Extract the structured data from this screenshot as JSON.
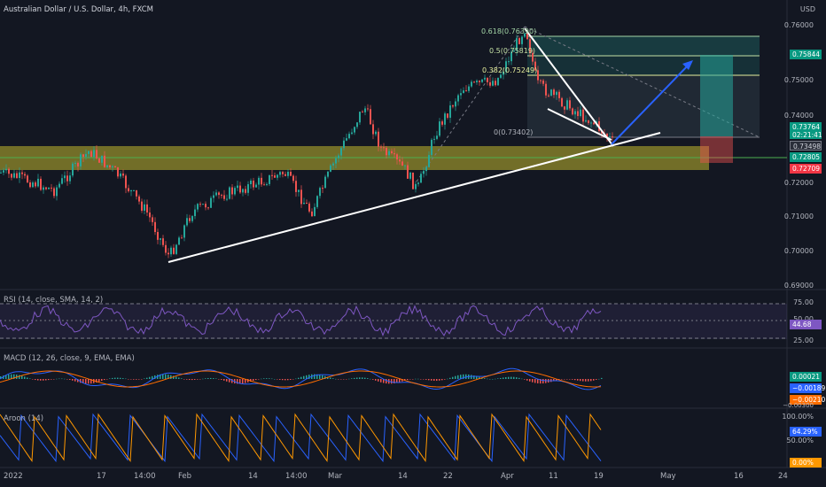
{
  "header": {
    "title": "Australian Dollar / U.S. Dollar, 4h, FXCM",
    "currency": "USD"
  },
  "price_axis": [
    "0.76000",
    "0.75000",
    "0.74000",
    "0.72000",
    "0.71000",
    "0.70000",
    "0.69000"
  ],
  "price_tags": {
    "target": "0.75844",
    "last": "0.73764",
    "countdown": "02:21:41",
    "entry": "0.73498",
    "level1": "0.72805",
    "stop": "0.72709"
  },
  "fib_levels": [
    {
      "label": "0.618(0.76390)",
      "color": "#a5d6a7"
    },
    {
      "label": "0.5(0.75819)",
      "color": "#c5e1a5"
    },
    {
      "label": "0.382(0.75249)",
      "color": "#e6ee9c"
    },
    {
      "label": "0(0.73402)",
      "color": "#b2b5be"
    }
  ],
  "x_axis": [
    "2022",
    "17",
    "14:00",
    "Feb",
    "14",
    "14:00",
    "Mar",
    "14",
    "22",
    "Apr",
    "11",
    "19",
    "May",
    "16",
    "24"
  ],
  "rsi": {
    "label": "RSI (14, close, SMA, 14, 2)",
    "axis": [
      "75.00",
      "50.00",
      "25.00"
    ],
    "value": "44.68"
  },
  "macd": {
    "label": "MACD (12, 26, close, 9, EMA, EMA)",
    "values": [
      "0.00021",
      "−0.00189",
      "−0.00210"
    ],
    "axis_partial": "−0.00300"
  },
  "aroon": {
    "label": "Aroon (14)",
    "axis": [
      "100.00%",
      "50.00%"
    ],
    "up": "64.29%",
    "down": "0.00%"
  },
  "colors": {
    "background": "#131722",
    "bull": "#26a69a",
    "bear": "#ef5350",
    "zone": "#f6e733",
    "trendline": "#ffffff",
    "projection": "#2962ff",
    "rsi_line": "#7e57c2",
    "macd_line": "#2962ff",
    "signal_line": "#ff6d00",
    "aroon_up": "#ff9800",
    "aroon_down": "#2962ff",
    "target_tag": "#089981",
    "stop_tag": "#f23645",
    "last_tag": "#089981",
    "rsi_tag": "#7e57c2",
    "macd_tag_macd": "#2962ff",
    "macd_tag_signal": "#ff6d00",
    "aroon_tag_up": "#2962ff",
    "aroon_tag_down": "#ff9800"
  }
}
